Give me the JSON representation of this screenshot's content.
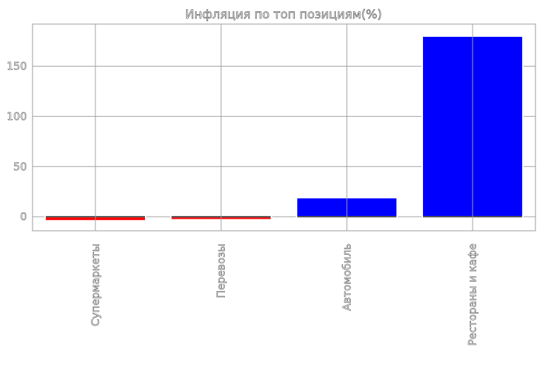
{
  "chart_data": {
    "type": "bar",
    "title": "Инфляция по топ позициям(%)",
    "xlabel": "",
    "ylabel": "",
    "categories": [
      "Супермаркеты",
      "Перевозы",
      "Автомобиль",
      "Рестораны и кафе"
    ],
    "values": [
      -4,
      -3,
      19,
      180
    ],
    "bar_colors": [
      "#ff0000",
      "#ff0000",
      "#0000ff",
      "#0000ff"
    ],
    "ylim": [
      -14,
      192
    ],
    "yticks": [
      0,
      50,
      100,
      150
    ],
    "ytick_labels": [
      "0",
      "50",
      "100",
      "150"
    ],
    "grid": true,
    "legend": "none"
  }
}
